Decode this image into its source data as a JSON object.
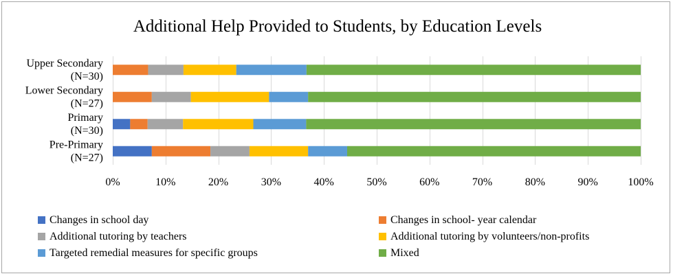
{
  "chart_data": {
    "type": "bar",
    "orientation": "horizontal",
    "stacked": "percent",
    "title": "Additional Help Provided to Students, by Education Levels",
    "categories": [
      [
        "Upper Secondary",
        "(N=30)"
      ],
      [
        "Lower Secondary",
        "(N=27)"
      ],
      [
        "Primary",
        "(N=30)"
      ],
      [
        "Pre-Primary",
        "(N=27)"
      ]
    ],
    "series": [
      {
        "name": "Changes in school day",
        "color": "#4472c4",
        "values": [
          0,
          0,
          3.3,
          7.4
        ]
      },
      {
        "name": "Changes in school- year calendar",
        "color": "#ed7d31",
        "values": [
          6.7,
          7.4,
          3.3,
          11.1
        ]
      },
      {
        "name": "Additional tutoring by teachers",
        "color": "#a5a5a5",
        "values": [
          6.7,
          7.4,
          6.7,
          7.4
        ]
      },
      {
        "name": "Additional tutoring by volunteers/non-profits",
        "color": "#ffc000",
        "values": [
          10.0,
          14.8,
          13.3,
          11.1
        ]
      },
      {
        "name": "Targeted remedial measures for specific groups",
        "color": "#5b9bd5",
        "values": [
          13.3,
          7.4,
          10.0,
          7.4
        ]
      },
      {
        "name": "Mixed",
        "color": "#70ad47",
        "values": [
          63.3,
          63.0,
          63.3,
          55.6
        ]
      }
    ],
    "xlim": [
      0,
      100
    ],
    "xticks": [
      "0%",
      "10%",
      "20%",
      "30%",
      "40%",
      "50%",
      "60%",
      "70%",
      "80%",
      "90%",
      "100%"
    ],
    "grid": "vertical",
    "legend_position": "bottom"
  }
}
